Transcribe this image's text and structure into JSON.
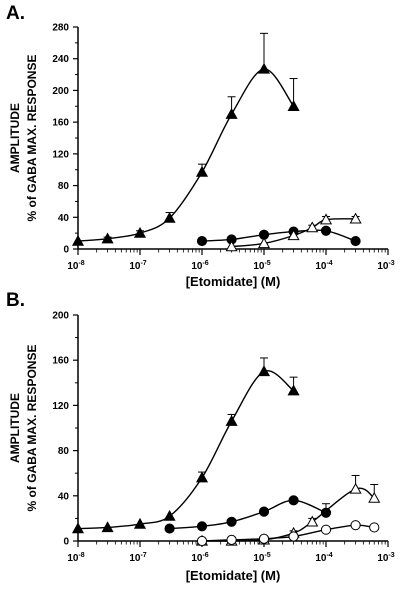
{
  "chart_data": [
    {
      "type": "scatter",
      "panel_label": "A.",
      "ylabel_line1": "AMPLITUDE",
      "ylabel_line2": "% of GABA MAX. RESPONSE",
      "xlabel": "[Etomidate] (M)",
      "x_scale": "log",
      "xlim": [
        1e-08,
        0.001
      ],
      "ylim": [
        0,
        280
      ],
      "y_ticks": [
        0,
        40,
        80,
        120,
        160,
        200,
        240,
        280
      ],
      "x_ticks": [
        "10-8",
        "10-7",
        "10-6",
        "10-5",
        "10-4",
        "10-3"
      ],
      "series": [
        {
          "marker": "filled-triangle",
          "x": [
            1e-08,
            3e-08,
            1e-07,
            3e-07,
            1e-06,
            3e-06,
            1e-05,
            3e-05
          ],
          "y": [
            10,
            13,
            20,
            39,
            97,
            170,
            227,
            180
          ],
          "err": [
            0,
            2,
            3,
            7,
            10,
            22,
            45,
            35
          ]
        },
        {
          "marker": "filled-circle",
          "x": [
            1e-06,
            3e-06,
            1e-05,
            3e-05,
            0.0001,
            0.0003
          ],
          "y": [
            10,
            12,
            18,
            22,
            23,
            10
          ],
          "err": [
            0,
            0,
            0,
            0,
            0,
            0
          ]
        },
        {
          "marker": "open-triangle",
          "x": [
            3e-06,
            1e-05,
            3e-05,
            6e-05,
            0.0001,
            0.0003
          ],
          "y": [
            3,
            7,
            17,
            27,
            37,
            38
          ],
          "err": [
            0,
            0,
            2,
            3,
            4,
            3
          ]
        }
      ]
    },
    {
      "type": "scatter",
      "panel_label": "B.",
      "ylabel_line1": "AMPLITUDE",
      "ylabel_line2": "% of GABA MAX. RESPONSE",
      "xlabel": "[Etomidate] (M)",
      "x_scale": "log",
      "xlim": [
        1e-08,
        0.001
      ],
      "ylim": [
        0,
        200
      ],
      "y_ticks": [
        0,
        40,
        80,
        120,
        160,
        200
      ],
      "x_ticks": [
        "10-8",
        "10-7",
        "10-6",
        "10-5",
        "10-4",
        "10-3"
      ],
      "series": [
        {
          "marker": "filled-triangle",
          "x": [
            1e-08,
            3e-08,
            1e-07,
            3e-07,
            1e-06,
            3e-06,
            1e-05,
            3e-05
          ],
          "y": [
            11,
            12,
            15,
            22,
            56,
            106,
            150,
            133
          ],
          "err": [
            0,
            0,
            0,
            0,
            5,
            6,
            12,
            12
          ]
        },
        {
          "marker": "filled-circle",
          "x": [
            3e-07,
            1e-06,
            3e-06,
            1e-05,
            3e-05,
            0.0001
          ],
          "y": [
            11,
            13,
            17,
            26,
            36,
            25
          ],
          "err": [
            0,
            0,
            0,
            0,
            0,
            8
          ]
        },
        {
          "marker": "open-triangle",
          "x": [
            1e-06,
            3e-06,
            1e-05,
            3e-05,
            6e-05,
            0.0003,
            0.0006
          ],
          "y": [
            0,
            0,
            1,
            7,
            17,
            46,
            38
          ],
          "err": [
            0,
            0,
            0,
            2,
            3,
            12,
            12
          ]
        },
        {
          "marker": "open-circle",
          "x": [
            1e-06,
            3e-06,
            1e-05,
            3e-05,
            0.0001,
            0.0003,
            0.0006
          ],
          "y": [
            0,
            1,
            2,
            4,
            10,
            14,
            12
          ],
          "err": [
            0,
            0,
            0,
            0,
            0,
            0,
            0
          ]
        }
      ]
    }
  ]
}
